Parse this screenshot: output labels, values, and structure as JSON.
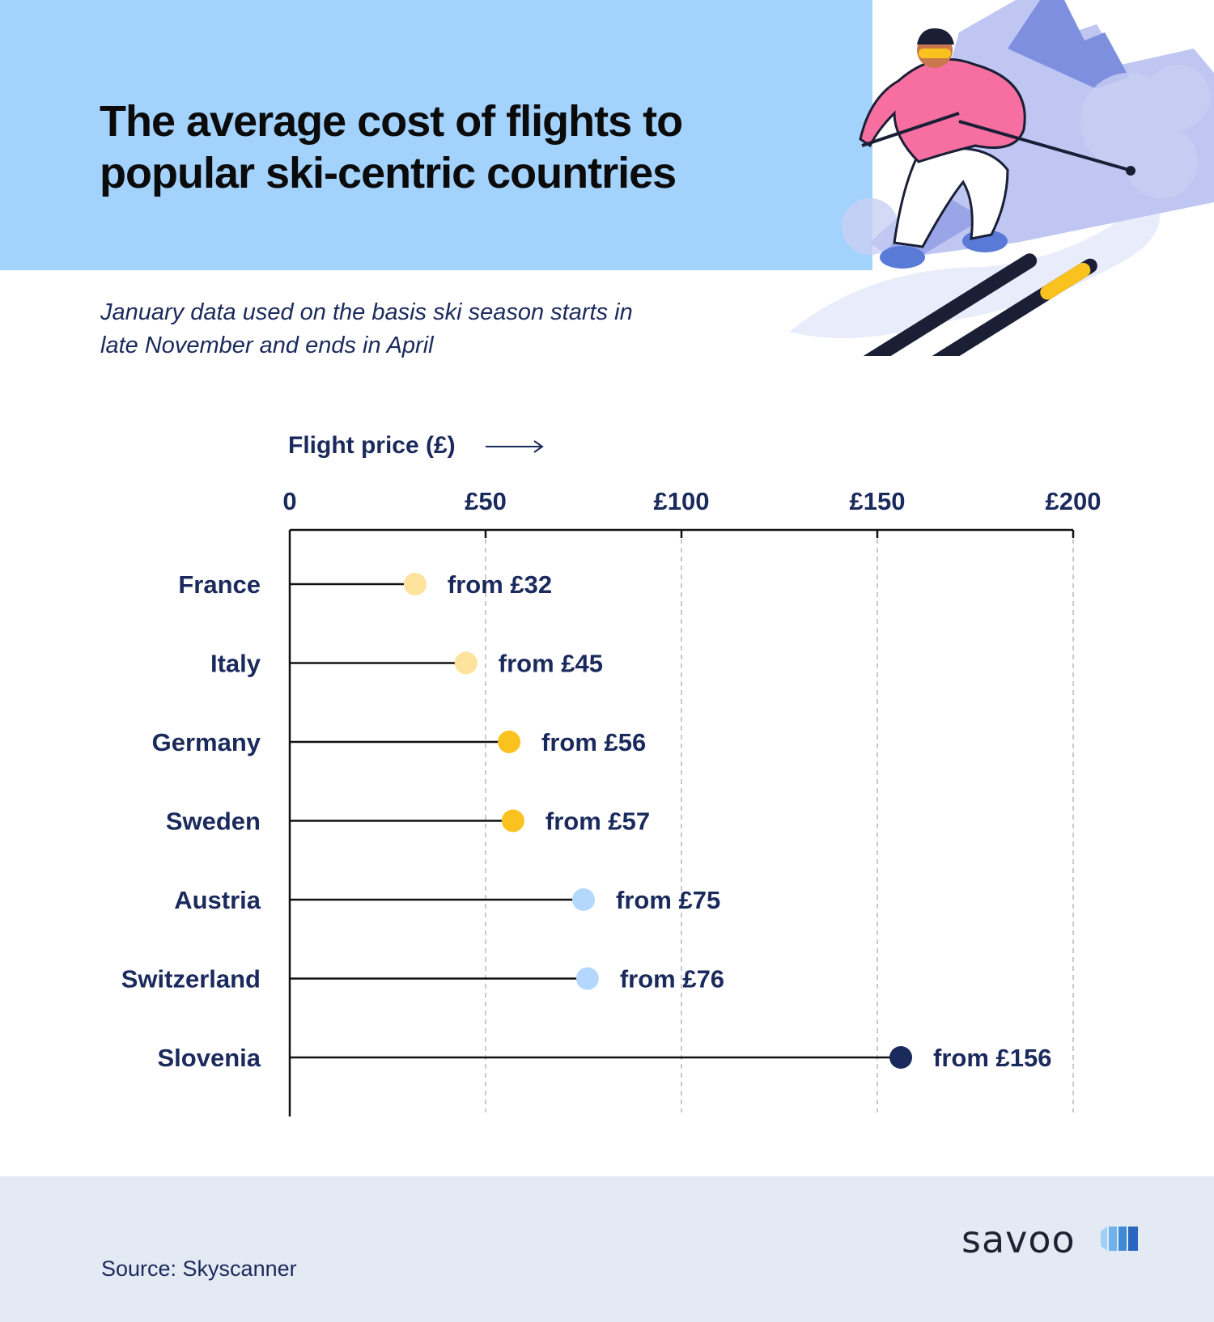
{
  "header": {
    "title_line1": "The average cost of flights to",
    "title_line2": "popular ski-centric countries",
    "subtitle_line1": "January data used on the basis ski season starts in",
    "subtitle_line2": "late November and ends in April"
  },
  "colors": {
    "header_band": "#a3d3fd",
    "text_navy": "#1b2a5c",
    "footer_bg": "#e4eaf3",
    "dot_light_yellow": "#fde39b",
    "dot_yellow": "#f9c21f",
    "dot_light_blue": "#b3d7fd",
    "dot_navy": "#1b2a5c"
  },
  "chart_data": {
    "type": "lollipop",
    "xlabel": "Flight price (£)",
    "x_ticks": [
      {
        "value": 0,
        "label": "0"
      },
      {
        "value": 50,
        "label": "£50"
      },
      {
        "value": 100,
        "label": "£100"
      },
      {
        "value": 150,
        "label": "£150"
      },
      {
        "value": 200,
        "label": "£200"
      }
    ],
    "xlim": [
      0,
      200
    ],
    "grid": "vertical dashed",
    "points": [
      {
        "category": "France",
        "value": 32,
        "label": "from £32",
        "color": "#fde39b"
      },
      {
        "category": "Italy",
        "value": 45,
        "label": "from £45",
        "color": "#fde39b"
      },
      {
        "category": "Germany",
        "value": 56,
        "label": "from £56",
        "color": "#f9c21f"
      },
      {
        "category": "Sweden",
        "value": 57,
        "label": "from £57",
        "color": "#f9c21f"
      },
      {
        "category": "Austria",
        "value": 75,
        "label": "from £75",
        "color": "#b3d7fd"
      },
      {
        "category": "Switzerland",
        "value": 76,
        "label": "from £76",
        "color": "#b3d7fd"
      },
      {
        "category": "Slovenia",
        "value": 156,
        "label": "from £156",
        "color": "#1b2a5c"
      }
    ]
  },
  "footer": {
    "source": "Source: Skyscanner",
    "logo_text": "savoo"
  }
}
